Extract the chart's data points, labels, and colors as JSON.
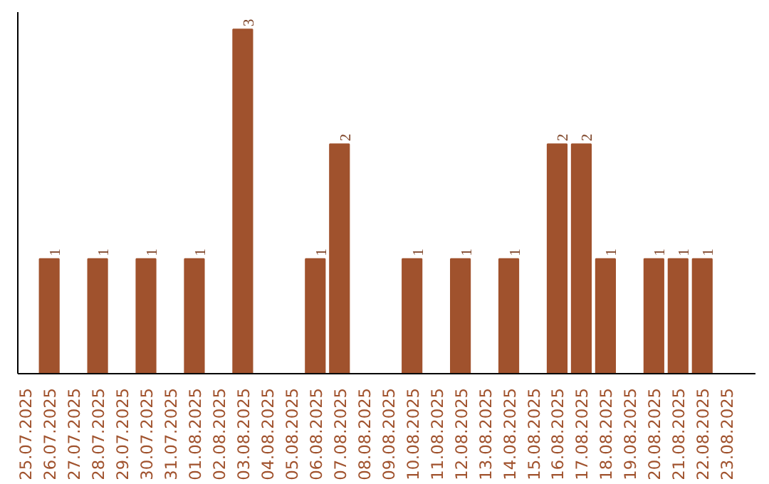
{
  "chart_data": {
    "type": "bar",
    "categories": [
      "25.07.2025",
      "26.07.2025",
      "27.07.2025",
      "28.07.2025",
      "29.07.2025",
      "30.07.2025",
      "31.07.2025",
      "01.08.2025",
      "02.08.2025",
      "03.08.2025",
      "04.08.2025",
      "05.08.2025",
      "06.08.2025",
      "07.08.2025",
      "08.08.2025",
      "09.08.2025",
      "10.08.2025",
      "11.08.2025",
      "12.08.2025",
      "13.08.2025",
      "14.08.2025",
      "15.08.2025",
      "16.08.2025",
      "17.08.2025",
      "18.08.2025",
      "19.08.2025",
      "20.08.2025",
      "21.08.2025",
      "22.08.2025",
      "23.08.2025"
    ],
    "values": [
      0,
      1,
      0,
      1,
      0,
      1,
      0,
      1,
      0,
      3,
      0,
      0,
      1,
      2,
      0,
      0,
      1,
      0,
      1,
      0,
      1,
      0,
      2,
      2,
      1,
      0,
      1,
      1,
      1,
      0
    ],
    "value_labels": [
      null,
      "1",
      null,
      "1",
      null,
      "1",
      null,
      "1",
      null,
      "3",
      null,
      null,
      "1",
      "2",
      null,
      null,
      "1",
      null,
      "1",
      null,
      "1",
      null,
      "2",
      "2",
      "1",
      null,
      "1",
      "1",
      "1",
      null
    ],
    "color": "#a0522d",
    "tick_labels": "x"
  }
}
